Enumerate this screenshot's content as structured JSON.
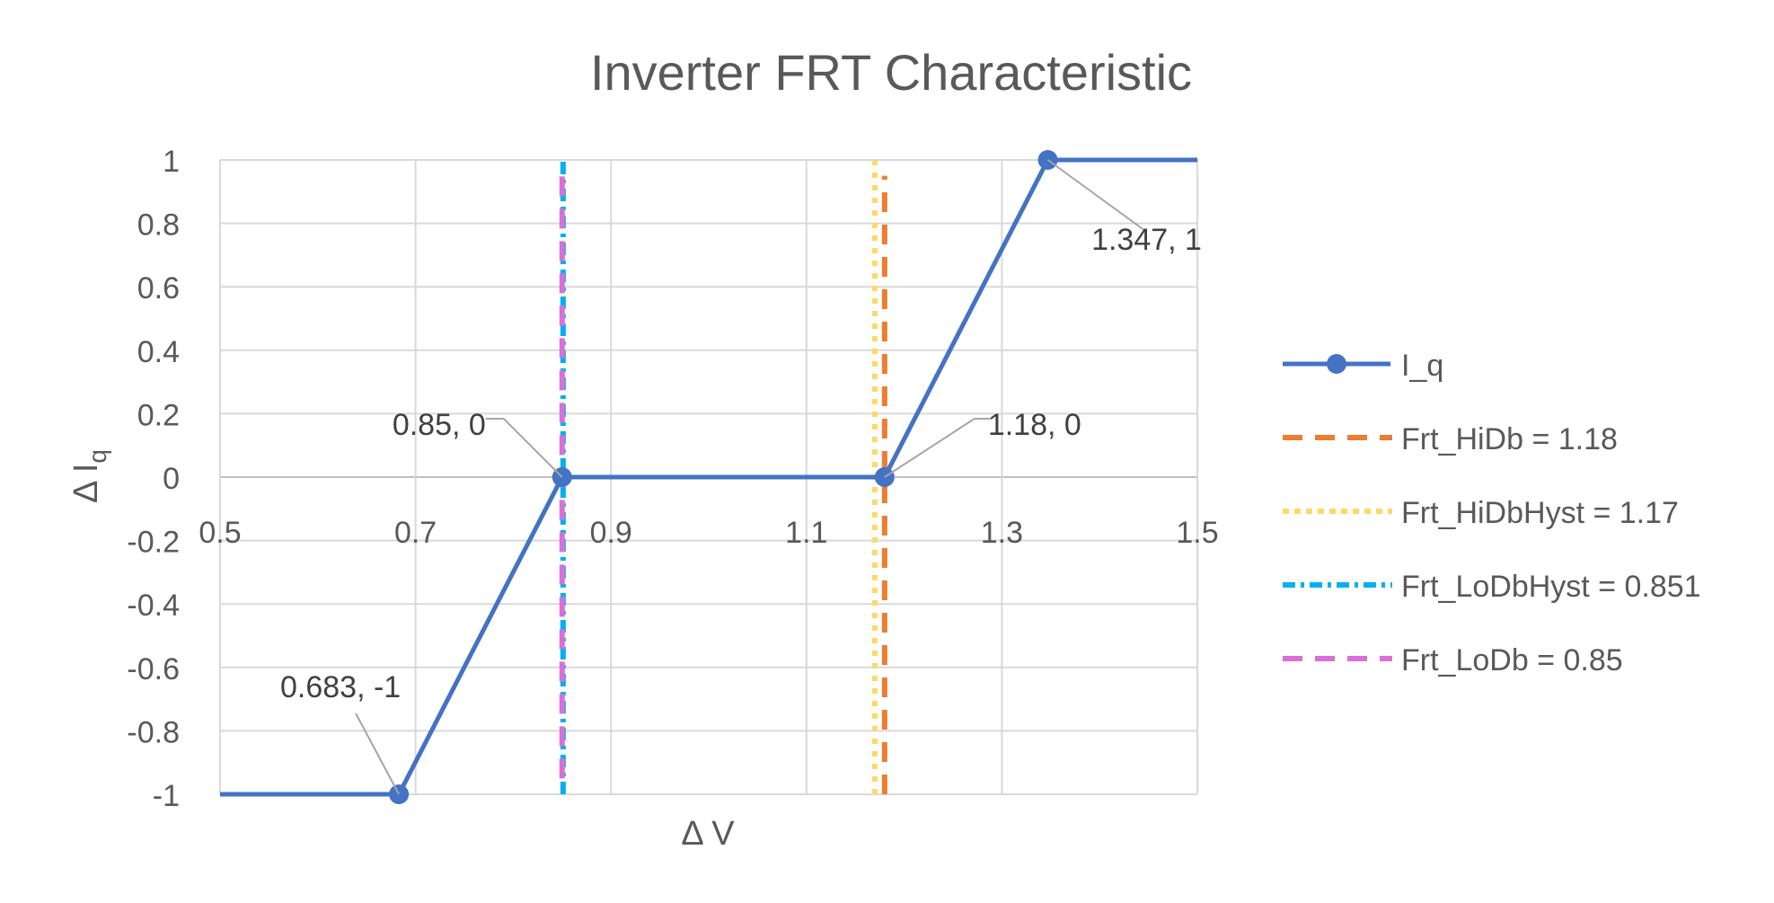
{
  "chart_data": {
    "type": "line",
    "title": "Inverter FRT Characteristic",
    "xlabel": "Δ V",
    "ylabel_main": "Δ I",
    "ylabel_sub": "q",
    "xlim": [
      0.5,
      1.5
    ],
    "ylim": [
      -1,
      1
    ],
    "x_ticks": [
      0.5,
      0.7,
      0.9,
      1.1,
      1.3,
      1.5
    ],
    "x_tick_labels": [
      "0.5",
      "0.7",
      "0.9",
      "1.1",
      "1.3",
      "1.5"
    ],
    "y_ticks": [
      1,
      0.8,
      0.6,
      0.4,
      0.2,
      0,
      -0.2,
      -0.4,
      -0.6,
      -0.8,
      -1
    ],
    "y_tick_labels": [
      "1",
      "0.8",
      "0.6",
      "0.4",
      "0.2",
      "0",
      "-0.2",
      "-0.4",
      "-0.6",
      "-0.8",
      "-1"
    ],
    "grid": true,
    "legend_position": "right",
    "series": [
      {
        "name": "I_q",
        "color": "#4472C4",
        "style": "solid-markers",
        "x": [
          0.5,
          0.683,
          0.85,
          1.18,
          1.347,
          1.5
        ],
        "y": [
          -1,
          -1,
          0,
          0,
          1,
          1
        ],
        "marker_x": [
          0.683,
          0.85,
          1.18,
          1.347
        ],
        "marker_y": [
          -1,
          0,
          0,
          1
        ]
      },
      {
        "name": "Frt_HiDb = 1.18",
        "color": "#ED7D31",
        "style": "dash",
        "x": [
          1.18,
          1.18
        ],
        "y": [
          -1,
          0.95
        ]
      },
      {
        "name": "Frt_HiDbHyst = 1.17",
        "color": "#FFD966",
        "style": "dot",
        "x": [
          1.17,
          1.17
        ],
        "y": [
          -1,
          1
        ]
      },
      {
        "name": "Frt_LoDbHyst = 0.851",
        "color": "#00B0F0",
        "style": "dashdot",
        "x": [
          0.851,
          0.851
        ],
        "y": [
          -1,
          1
        ]
      },
      {
        "name": "Frt_LoDb = 0.85",
        "color": "#DA70D6",
        "style": "dash",
        "x": [
          0.85,
          0.85
        ],
        "y": [
          -0.95,
          0.95
        ]
      }
    ],
    "annotations": [
      {
        "text": "0.683, -1",
        "x": 0.683,
        "y": -1,
        "anchor": "upper-left"
      },
      {
        "text": "0.85, 0",
        "x": 0.85,
        "y": 0,
        "anchor": "upper-left"
      },
      {
        "text": "1.18, 0",
        "x": 1.18,
        "y": 0,
        "anchor": "upper-right"
      },
      {
        "text": "1.347, 1",
        "x": 1.347,
        "y": 1,
        "anchor": "lower-right"
      }
    ]
  }
}
